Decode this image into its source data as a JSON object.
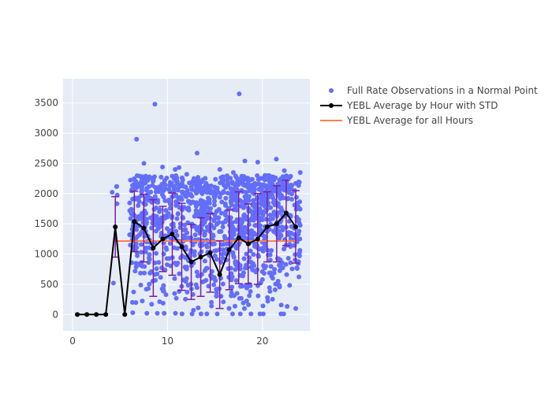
{
  "chart_data": {
    "type": "scatter",
    "title": "",
    "xlabel": "",
    "ylabel": "",
    "xlim": [
      -1,
      25
    ],
    "ylim": [
      -270,
      3900
    ],
    "x_ticks": [
      0,
      10,
      20
    ],
    "x_tick_labels": [
      "0",
      "10",
      "20"
    ],
    "y_ticks": [
      0,
      500,
      1000,
      1500,
      2000,
      2500,
      3000,
      3500
    ],
    "y_tick_labels": [
      "0",
      "500",
      "1000",
      "1500",
      "2000",
      "2500",
      "3000",
      "3500"
    ],
    "grid": true,
    "legend_position": "top-right outside",
    "colors": {
      "plot_background": "#e5ecf6",
      "grid": "#ffffff",
      "scatter": "#636efa",
      "average_line": "#000000",
      "error_bar": "#7b1fa2",
      "overall_line": "#ff7f50"
    },
    "series": [
      {
        "name": "Full Rate Observations in a Normal Point",
        "kind": "scatter",
        "bins": [
          {
            "hour": 4.5,
            "n": 6,
            "ymin": 520,
            "ymax": 2120
          },
          {
            "hour": 5.5,
            "n": 0,
            "ymin": 0,
            "ymax": 0
          },
          {
            "hour": 6.5,
            "n": 70,
            "ymin": 30,
            "ymax": 2900
          },
          {
            "hour": 7.5,
            "n": 75,
            "ymin": 20,
            "ymax": 2500
          },
          {
            "hour": 8.5,
            "n": 60,
            "ymin": 20,
            "ymax": 3480
          },
          {
            "hour": 9.5,
            "n": 60,
            "ymin": 20,
            "ymax": 2440
          },
          {
            "hour": 10.5,
            "n": 55,
            "ymin": 20,
            "ymax": 2400
          },
          {
            "hour": 11.5,
            "n": 60,
            "ymin": 10,
            "ymax": 2430
          },
          {
            "hour": 12.5,
            "n": 60,
            "ymin": 10,
            "ymax": 2320
          },
          {
            "hour": 13.5,
            "n": 90,
            "ymin": 10,
            "ymax": 2670
          },
          {
            "hour": 14.5,
            "n": 70,
            "ymin": 10,
            "ymax": 2170
          },
          {
            "hour": 15.5,
            "n": 55,
            "ymin": 10,
            "ymax": 2400
          },
          {
            "hour": 16.5,
            "n": 80,
            "ymin": 10,
            "ymax": 2350
          },
          {
            "hour": 17.5,
            "n": 90,
            "ymin": 10,
            "ymax": 3650
          },
          {
            "hour": 18.5,
            "n": 95,
            "ymin": 10,
            "ymax": 2540
          },
          {
            "hour": 19.5,
            "n": 90,
            "ymin": 10,
            "ymax": 2520
          },
          {
            "hour": 20.5,
            "n": 90,
            "ymin": 10,
            "ymax": 2300
          },
          {
            "hour": 21.5,
            "n": 75,
            "ymin": 10,
            "ymax": 2570
          },
          {
            "hour": 22.5,
            "n": 60,
            "ymin": 10,
            "ymax": 2380
          },
          {
            "hour": 23.5,
            "n": 50,
            "ymin": 100,
            "ymax": 2350
          }
        ]
      },
      {
        "name": "YEBL Average by Hour with STD",
        "kind": "line",
        "x": [
          0.5,
          1.5,
          2.5,
          3.5,
          4.5,
          5.5,
          6.5,
          7.5,
          8.5,
          9.5,
          10.5,
          11.5,
          12.5,
          13.5,
          14.5,
          15.5,
          16.5,
          17.5,
          18.5,
          19.5,
          20.5,
          21.5,
          22.5,
          23.5
        ],
        "y": [
          0,
          0,
          0,
          0,
          1450,
          0,
          1540,
          1430,
          1100,
          1250,
          1330,
          1120,
          870,
          950,
          1020,
          660,
          1070,
          1270,
          1170,
          1250,
          1450,
          1500,
          1680,
          1450
        ],
        "std": [
          0,
          0,
          0,
          0,
          500,
          0,
          500,
          560,
          800,
          540,
          680,
          720,
          620,
          650,
          650,
          560,
          660,
          760,
          660,
          750,
          580,
          630,
          540,
          600
        ]
      },
      {
        "name": "YEBL Average for all Hours",
        "kind": "line",
        "x": [
          4.5,
          23.5
        ],
        "y": [
          1215,
          1215
        ]
      }
    ]
  }
}
